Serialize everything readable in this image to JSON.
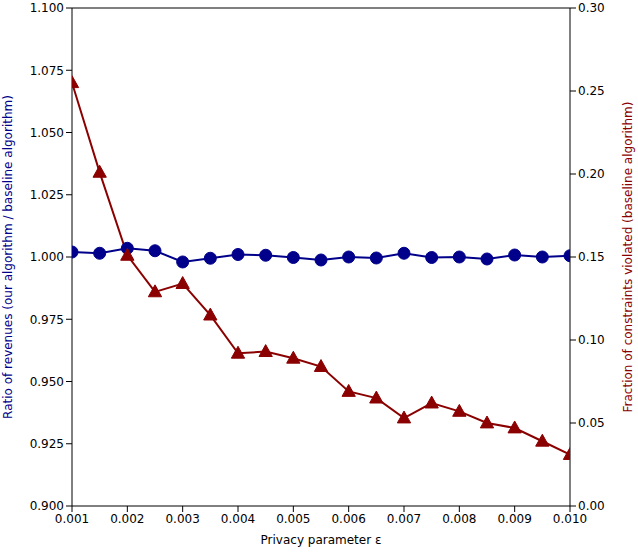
{
  "chart_data": {
    "type": "line",
    "xlabel": "Privacy parameter ε",
    "ylabel": "Ratio of revenues (our algorithm / baseline algorithm)",
    "y2label": "Fraction of constraints violated (baseline algorithm)",
    "x": [
      0.001,
      0.0015,
      0.002,
      0.0025,
      0.003,
      0.0035,
      0.004,
      0.0045,
      0.005,
      0.0055,
      0.006,
      0.0065,
      0.007,
      0.0075,
      0.008,
      0.0085,
      0.009,
      0.0095,
      0.01
    ],
    "series": [
      {
        "color": "#00008b",
        "marker": "circle",
        "values": [
          1.002,
          1.0015,
          1.0035,
          1.0025,
          0.998,
          0.9995,
          1.001,
          1.0007,
          0.9998,
          0.9988,
          1.0,
          0.9996,
          1.0015,
          0.9998,
          1.0,
          0.9992,
          1.0008,
          1.0,
          1.0005
        ]
      },
      {
        "color": "#8b0000",
        "marker": "triangle",
        "axis": "y2",
        "values": [
          0.255,
          0.201,
          0.151,
          0.129,
          0.134,
          0.115,
          0.092,
          0.093,
          0.089,
          0.084,
          0.069,
          0.065,
          0.053,
          0.062,
          0.057,
          0.05,
          0.047,
          0.039,
          0.031
        ]
      }
    ],
    "xlim": [
      0.001,
      0.01
    ],
    "xticks": [
      0.001,
      0.002,
      0.003,
      0.004,
      0.005,
      0.006,
      0.007,
      0.008,
      0.009,
      {
        "value": 0.01,
        "label": "0.010"
      }
    ],
    "ylim": [
      0.9,
      1.1
    ],
    "yticks": [
      {
        "value": 0.9,
        "label": "0.900"
      },
      0.925,
      {
        "value": 0.95,
        "label": "0.950"
      },
      0.975,
      {
        "value": 1.0,
        "label": "1.000"
      },
      1.025,
      {
        "value": 1.05,
        "label": "1.050"
      },
      1.075,
      {
        "value": 1.1,
        "label": "1.100"
      }
    ],
    "y2lim": [
      0.0,
      0.3
    ],
    "y2ticks": [
      {
        "value": 0.0,
        "label": "0.00"
      },
      0.05,
      {
        "value": 0.1,
        "label": "0.10"
      },
      0.15,
      {
        "value": 0.2,
        "label": "0.20"
      },
      0.25,
      {
        "value": 0.3,
        "label": "0.30"
      }
    ]
  }
}
